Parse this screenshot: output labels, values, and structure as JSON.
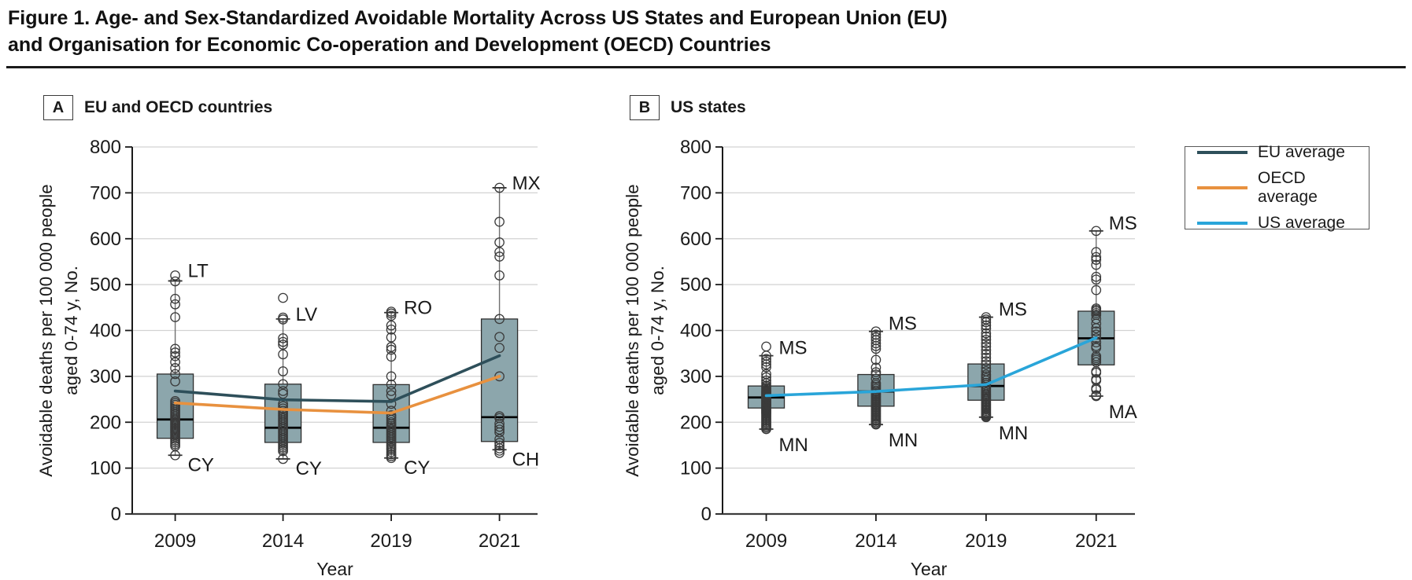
{
  "figure": {
    "title_line1": "Figure 1. Age- and Sex-Standardized Avoidable Mortality Across US States and European Union (EU)",
    "title_line2": "and Organisation for Economic Co-operation and Development (OECD) Countries"
  },
  "legend": {
    "items": [
      {
        "label": "EU average",
        "color": "#2e4f5a"
      },
      {
        "label": "OECD average",
        "color": "#e8913f"
      },
      {
        "label": "US average",
        "color": "#29a5d9"
      }
    ]
  },
  "axes": {
    "ylabel_line1": "Avoidable deaths per 100 000 people",
    "ylabel_line2": "aged 0-74 y, No.",
    "xlabel": "Year",
    "ylim": [
      0,
      800
    ],
    "ytick_step": 100,
    "grid": true
  },
  "chart_data": [
    {
      "type": "box-scatter-line",
      "panel_letter": "A",
      "panel_title": "EU and OECD countries",
      "categories": [
        "2009",
        "2014",
        "2019",
        "2021"
      ],
      "box_fill": "#8ca6ac",
      "boxes": [
        {
          "category": "2009",
          "q1": 165,
          "median": 206,
          "q3": 305,
          "whisker_low": 128,
          "whisker_high": 508,
          "label_top": {
            "text": "LT",
            "at": 520
          },
          "label_bottom": {
            "text": "CY",
            "at": 128
          },
          "points": [
            520,
            507,
            469,
            457,
            429,
            360,
            352,
            344,
            331,
            318,
            305,
            289,
            246,
            242,
            238,
            234,
            230,
            226,
            222,
            218,
            214,
            210,
            206,
            203,
            200,
            197,
            194,
            191,
            188,
            185,
            182,
            179,
            176,
            172,
            168,
            164,
            160,
            156,
            152,
            148,
            128
          ]
        },
        {
          "category": "2014",
          "q1": 156,
          "median": 188,
          "q3": 283,
          "whisker_low": 120,
          "whisker_high": 425,
          "label_top": {
            "text": "LV",
            "at": 425
          },
          "label_bottom": {
            "text": "CY",
            "at": 120
          },
          "points": [
            471,
            428,
            424,
            383,
            375,
            369,
            348,
            311,
            283,
            268,
            262,
            240,
            235,
            230,
            225,
            221,
            217,
            213,
            209,
            205,
            201,
            197,
            193,
            189,
            185,
            181,
            177,
            173,
            169,
            165,
            161,
            157,
            153,
            149,
            145,
            141,
            137,
            120
          ]
        },
        {
          "category": "2019",
          "q1": 156,
          "median": 188,
          "q3": 282,
          "whisker_low": 122,
          "whisker_high": 439,
          "label_top": {
            "text": "RO",
            "at": 439
          },
          "label_bottom": {
            "text": "CY",
            "at": 122
          },
          "points": [
            441,
            437,
            432,
            411,
            402,
            385,
            364,
            358,
            343,
            300,
            282,
            268,
            259,
            240,
            225,
            215,
            210,
            205,
            200,
            196,
            192,
            188,
            184,
            180,
            176,
            172,
            168,
            164,
            160,
            156,
            152,
            148,
            144,
            140,
            135,
            130,
            126,
            122
          ]
        },
        {
          "category": "2021",
          "q1": 158,
          "median": 211,
          "q3": 425,
          "whisker_low": 140,
          "whisker_high": 711,
          "label_top": {
            "text": "MX",
            "at": 711
          },
          "label_bottom": {
            "text": "CH",
            "at": 140
          },
          "points": [
            711,
            637,
            592,
            571,
            561,
            520,
            425,
            386,
            362,
            300,
            213,
            209,
            197,
            190,
            184,
            178,
            163,
            155,
            149,
            143,
            138,
            133
          ]
        }
      ],
      "series": [
        {
          "name": "EU average",
          "color": "#2e4f5a",
          "values": [
            268,
            249,
            245,
            345
          ]
        },
        {
          "name": "OECD average",
          "color": "#e8913f",
          "values": [
            242,
            228,
            220,
            300
          ]
        }
      ]
    },
    {
      "type": "box-scatter-line",
      "panel_letter": "B",
      "panel_title": "US states",
      "categories": [
        "2009",
        "2014",
        "2019",
        "2021"
      ],
      "box_fill": "#8ca6ac",
      "boxes": [
        {
          "category": "2009",
          "q1": 231,
          "median": 254,
          "q3": 279,
          "whisker_low": 185,
          "whisker_high": 345,
          "label_top": {
            "text": "MS",
            "at": 345
          },
          "label_bottom": {
            "text": "MN",
            "at": 185
          },
          "points": [
            365,
            345,
            338,
            332,
            326,
            320,
            305,
            298,
            291,
            285,
            280,
            277,
            274,
            271,
            268,
            266,
            264,
            262,
            260,
            258,
            256,
            254,
            252,
            250,
            248,
            246,
            244,
            242,
            240,
            238,
            236,
            234,
            232,
            230,
            228,
            226,
            224,
            222,
            220,
            218,
            215,
            212,
            209,
            206,
            203,
            200,
            197,
            194,
            191,
            188,
            185
          ]
        },
        {
          "category": "2014",
          "q1": 235,
          "median": 267,
          "q3": 304,
          "whisker_low": 195,
          "whisker_high": 398,
          "label_top": {
            "text": "MS",
            "at": 398
          },
          "label_bottom": {
            "text": "MN",
            "at": 195
          },
          "points": [
            398,
            391,
            385,
            379,
            372,
            366,
            360,
            336,
            319,
            309,
            304,
            295,
            285,
            281,
            277,
            273,
            269,
            266,
            263,
            260,
            257,
            254,
            251,
            248,
            245,
            242,
            239,
            236,
            233,
            230,
            227,
            224,
            221,
            218,
            215,
            212,
            209,
            206,
            203,
            200,
            197,
            195
          ]
        },
        {
          "category": "2019",
          "q1": 248,
          "median": 279,
          "q3": 327,
          "whisker_low": 211,
          "whisker_high": 429,
          "label_top": {
            "text": "MS",
            "at": 429
          },
          "label_bottom": {
            "text": "MN",
            "at": 211
          },
          "points": [
            429,
            424,
            418,
            411,
            404,
            394,
            387,
            380,
            372,
            365,
            357,
            349,
            341,
            333,
            326,
            318,
            311,
            304,
            300,
            296,
            291,
            286,
            281,
            277,
            273,
            269,
            265,
            261,
            258,
            255,
            252,
            249,
            246,
            243,
            240,
            237,
            234,
            231,
            228,
            225,
            222,
            219,
            217,
            215,
            213,
            211
          ]
        },
        {
          "category": "2021",
          "q1": 325,
          "median": 383,
          "q3": 442,
          "whisker_low": 257,
          "whisker_high": 617,
          "label_top": {
            "text": "MS",
            "at": 617
          },
          "label_bottom": {
            "text": "MA",
            "at": 257
          },
          "points": [
            617,
            571,
            560,
            554,
            543,
            517,
            511,
            488,
            448,
            445,
            442,
            438,
            434,
            425,
            415,
            405,
            398,
            391,
            383,
            374,
            366,
            362,
            344,
            340,
            336,
            331,
            311,
            308,
            294,
            291,
            274,
            271,
            259,
            257
          ]
        }
      ],
      "series": [
        {
          "name": "US average",
          "color": "#29a5d9",
          "values": [
            258,
            267,
            282,
            384
          ]
        }
      ]
    }
  ]
}
